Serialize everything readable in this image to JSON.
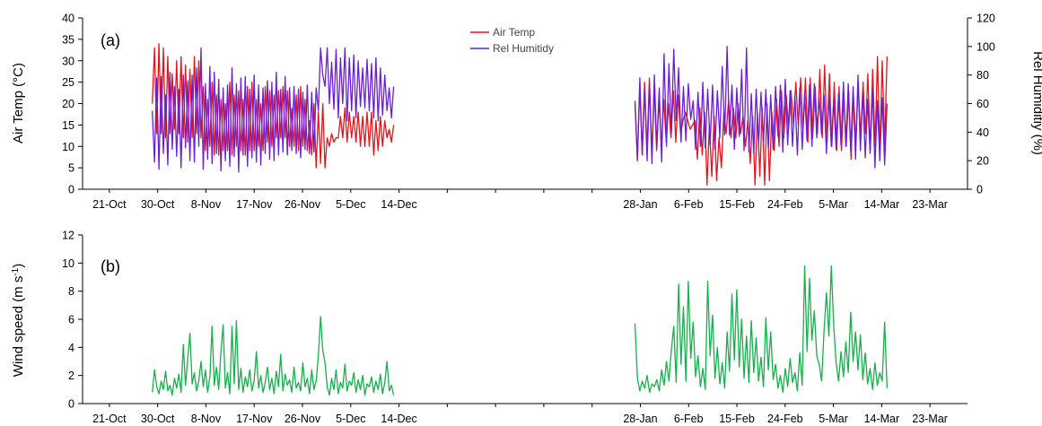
{
  "chart_data": [
    {
      "type": "line",
      "panel_label": "(a)",
      "x_ticks": [
        "21-Oct",
        "30-Oct",
        "8-Nov",
        "17-Nov",
        "26-Nov",
        "5-Dec",
        "14-Dec",
        "28-Jan",
        "6-Feb",
        "15-Feb",
        "24-Feb",
        "5-Mar",
        "14-Mar",
        "23-Mar"
      ],
      "ylabel": "Air Temp (°C)",
      "ylabel_right": "Rel Humiditiy (%)",
      "ylim": [
        0,
        40
      ],
      "y_ticks": [
        0,
        5,
        10,
        15,
        20,
        25,
        30,
        35,
        40
      ],
      "ylim_right": [
        0,
        120
      ],
      "y_ticks_right": [
        0,
        20,
        40,
        60,
        80,
        100,
        120
      ],
      "legend": "top-center",
      "grid": false,
      "series": [
        {
          "name": "Air Temp",
          "color": "#e8141c",
          "axis": "left",
          "segments": [
            {
              "start": "29-Oct",
              "end": "13-Dec",
              "values": [
                20,
                33,
                13,
                34,
                13,
                33,
                12,
                31,
                13,
                27,
                14,
                30,
                13,
                31,
                12,
                29,
                11,
                28,
                12,
                31,
                13,
                30,
                12,
                24,
                9,
                21,
                10,
                25,
                8,
                22,
                8,
                21,
                9,
                20,
                9,
                25,
                8,
                22,
                10,
                23,
                9,
                21,
                8,
                24,
                9,
                25,
                9,
                21,
                10,
                20,
                9,
                24,
                11,
                23,
                10,
                22,
                12,
                23,
                12,
                24,
                12,
                23,
                10,
                19,
                10,
                22,
                9,
                24,
                10,
                21,
                9,
                16,
                8,
                20,
                5,
                18,
                6,
                20,
                5,
                12,
                10,
                13,
                11,
                12,
                12,
                17,
                12,
                19,
                11,
                18,
                12,
                17,
                11,
                18,
                10,
                17,
                10,
                18,
                10,
                18,
                8,
                16,
                9,
                17,
                10,
                16,
                12,
                14,
                11,
                15
              ]
            },
            {
              "start": "27-Jan",
              "end": "15-Mar",
              "values": [
                20,
                7,
                24,
                8,
                25,
                9,
                26,
                8,
                24,
                9,
                21,
                10,
                21,
                11,
                20,
                12,
                23,
                11,
                22,
                13,
                16,
                18,
                16,
                14,
                15,
                16,
                7,
                19,
                8,
                18,
                1,
                15,
                3,
                17,
                2,
                12,
                5,
                18,
                13,
                21,
                12,
                19,
                12,
                20,
                13,
                17,
                10,
                16,
                6,
                17,
                1,
                18,
                3,
                19,
                1,
                20,
                2,
                18,
                9,
                21,
                10,
                23,
                12,
                22,
                14,
                23,
                15,
                25,
                15,
                26,
                14,
                26,
                11,
                26,
                12,
                24,
                13,
                28,
                12,
                29,
                11,
                27,
                10,
                25,
                9,
                24,
                9,
                22,
                10,
                23,
                7,
                22,
                11,
                25,
                12,
                25,
                13,
                27,
                9,
                28,
                10,
                31,
                9,
                30,
                10,
                31
              ]
            }
          ]
        },
        {
          "name": "Rel Humitidy",
          "color": "#6a1fd6",
          "axis": "right",
          "segments": [
            {
              "start": "29-Oct",
              "end": "13-Dec",
              "values": [
                55,
                19,
                78,
                14,
                79,
                25,
                66,
                17,
                82,
                28,
                72,
                23,
                70,
                15,
                80,
                29,
                76,
                20,
                80,
                19,
                85,
                30,
                99,
                14,
                74,
                21,
                86,
                18,
                82,
                25,
                77,
                13,
                71,
                20,
                73,
                16,
                85,
                23,
                74,
                12,
                78,
                24,
                79,
                16,
                70,
                22,
                80,
                19,
                73,
                17,
                71,
                25,
                76,
                21,
                75,
                20,
                82,
                24,
                70,
                26,
                79,
                24,
                71,
                27,
                72,
                25,
                70,
                22,
                68,
                28,
                73,
                25,
                68,
                26,
                71,
                55,
                99,
                80,
                72,
                99,
                60,
                89,
                56,
                98,
                50,
                92,
                60,
                99,
                48,
                92,
                55,
                94,
                50,
                90,
                58,
                85,
                57,
                91,
                55,
                88,
                50,
                92,
                48,
                85,
                52,
                80,
                55,
                71,
                50,
                72
              ]
            },
            {
              "start": "27-Jan",
              "end": "15-Mar",
              "values": [
                62,
                20,
                78,
                24,
                70,
                20,
                74,
                18,
                80,
                29,
                71,
                19,
                95,
                30,
                88,
                39,
                98,
                48,
                85,
                33,
                72,
                34,
                74,
                49,
                62,
                28,
                68,
                30,
                75,
                29,
                70,
                31,
                73,
                28,
                69,
                36,
                86,
                38,
                100,
                38,
                73,
                28,
                71,
                37,
                84,
                27,
                99,
                26,
                67,
                25,
                70,
                32,
                68,
                33,
                70,
                29,
                66,
                28,
                72,
                37,
                73,
                26,
                77,
                31,
                69,
                30,
                66,
                24,
                71,
                28,
                67,
                34,
                73,
                30,
                74,
                36,
                64,
                38,
                66,
                25,
                67,
                30,
                63,
                28,
                67,
                31,
                75,
                30,
                74,
                27,
                72,
                21,
                80,
                27,
                68,
                22,
                63,
                25,
                70,
                15,
                62,
                20,
                64,
                17,
                60
              ]
            }
          ]
        }
      ]
    },
    {
      "type": "line",
      "panel_label": "(b)",
      "x_ticks": [
        "21-Oct",
        "30-Oct",
        "8-Nov",
        "17-Nov",
        "26-Nov",
        "5-Dec",
        "14-Dec",
        "28-Jan",
        "6-Feb",
        "15-Feb",
        "24-Feb",
        "5-Mar",
        "14-Mar",
        "23-Mar"
      ],
      "ylabel": "Wind speed (m s",
      "ylabel_sup": "-1",
      "ylabel_end": ")",
      "ylim": [
        0,
        12
      ],
      "y_ticks": [
        0,
        2,
        4,
        6,
        8,
        10,
        12
      ],
      "grid": false,
      "series": [
        {
          "color": "#15b14a",
          "axis": "left",
          "segments": [
            {
              "start": "29-Oct",
              "end": "13-Dec",
              "values": [
                0.8,
                2.4,
                1.2,
                0.7,
                1.6,
                1.0,
                2.3,
                0.9,
                1.3,
                0.6,
                1.8,
                1.1,
                2.1,
                0.8,
                4.2,
                1.3,
                3.2,
                5.0,
                1.4,
                2.2,
                0.9,
                1.6,
                3.0,
                1.2,
                2.4,
                0.8,
                1.9,
                5.5,
                1.3,
                2.6,
                1.0,
                3.7,
                5.6,
                1.1,
                2.2,
                0.7,
                5.5,
                1.4,
                5.9,
                1.0,
                2.5,
                0.8,
                1.9,
                1.2,
                2.4,
                0.9,
                1.6,
                3.7,
                1.1,
                2.0,
                0.8,
                1.5,
                2.6,
                1.0,
                1.8,
                0.7,
                2.3,
                1.2,
                3.5,
                0.9,
                2.1,
                1.3,
                1.7,
                0.8,
                2.6,
                1.1,
                1.5,
                0.9,
                2.9,
                1.2,
                1.8,
                0.7,
                2.4,
                1.0,
                1.6,
                3.4,
                6.2,
                3.8,
                2.9,
                1.2,
                0.6,
                1.8,
                1.0,
                2.4,
                0.7,
                1.5,
                1.1,
                2.8,
                0.9,
                1.6,
                1.3,
                2.2,
                0.8,
                1.7,
                1.0,
                2.0,
                0.6,
                1.4,
                1.2,
                1.9,
                0.8,
                1.6,
                1.0,
                2.1,
                0.7,
                1.5,
                3.0,
                0.9,
                1.3,
                0.6
              ]
            },
            {
              "start": "27-Jan",
              "end": "15-Mar",
              "values": [
                5.7,
                1.8,
                0.9,
                1.6,
                1.1,
                2.0,
                0.8,
                1.4,
                1.2,
                1.7,
                0.9,
                2.4,
                1.3,
                3.0,
                1.6,
                3.8,
                5.5,
                1.5,
                8.5,
                2.8,
                6.9,
                1.6,
                8.7,
                3.2,
                5.8,
                1.9,
                3.4,
                1.2,
                2.5,
                1.0,
                8.7,
                3.4,
                6.3,
                1.8,
                4.0,
                1.4,
                2.9,
                1.1,
                5.1,
                2.3,
                7.8,
                3.1,
                8.1,
                2.6,
                6.0,
                1.8,
                4.8,
                1.5,
                5.9,
                2.2,
                4.7,
                1.6,
                3.3,
                1.2,
                6.1,
                2.4,
                5.1,
                1.7,
                2.8,
                1.1,
                2.0,
                0.8,
                2.5,
                1.2,
                3.2,
                1.5,
                2.2,
                0.9,
                3.6,
                1.3,
                9.8,
                3.7,
                8.9,
                4.5,
                6.6,
                3.4,
                2.8,
                1.6,
                5.2,
                7.9,
                4.8,
                9.8,
                5.5,
                2.9,
                1.6,
                3.7,
                1.9,
                4.4,
                2.2,
                6.5,
                3.0,
                5.1,
                2.4,
                4.9,
                1.7,
                3.6,
                1.4,
                2.5,
                1.0,
                2.9,
                1.3,
                2.2,
                1.6,
                5.8,
                1.1
              ]
            }
          ]
        }
      ]
    }
  ]
}
